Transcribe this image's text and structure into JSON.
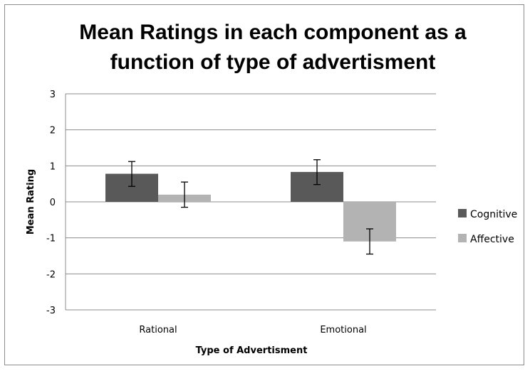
{
  "chart_data": {
    "type": "bar",
    "title_lines": [
      "Mean Ratings in each component as a",
      "function of type of advertisment"
    ],
    "xlabel": "Type of Advertisment",
    "ylabel": "Mean Rating",
    "categories": [
      "Rational",
      "Emotional"
    ],
    "ylim": [
      -3,
      3
    ],
    "yticks": [
      "3",
      "2",
      "1",
      "0",
      "-1",
      "-2",
      "-3"
    ],
    "grid": true,
    "legend_position": "right",
    "series": [
      {
        "name": "Cognitive",
        "color": "#595959",
        "values": [
          0.78,
          0.83
        ],
        "error_low": [
          0.43,
          0.48
        ],
        "error_high": [
          1.12,
          1.17
        ]
      },
      {
        "name": "Affective",
        "color": "#b3b3b3",
        "values": [
          0.2,
          -1.1
        ],
        "error_low": [
          -0.15,
          -1.45
        ],
        "error_high": [
          0.55,
          -0.75
        ]
      }
    ]
  }
}
